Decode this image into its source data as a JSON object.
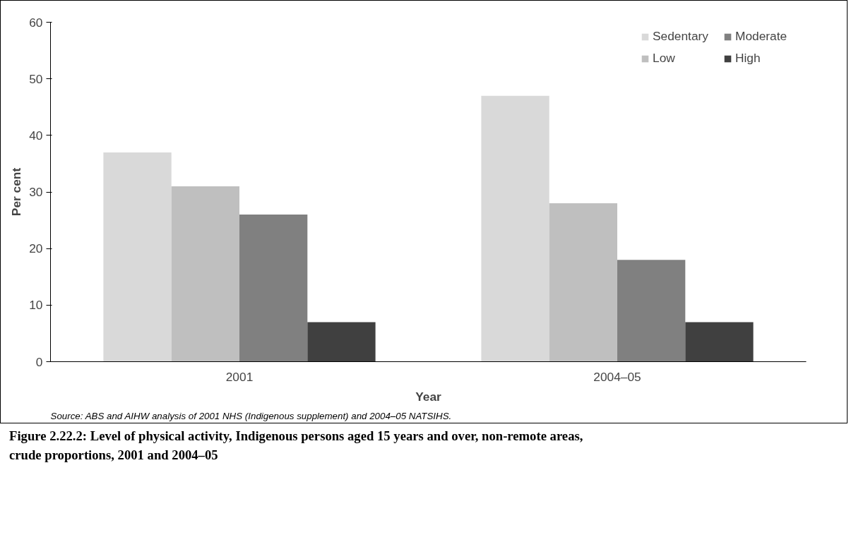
{
  "chart_data": {
    "type": "bar",
    "title": "Figure 2.22.2: Level of physical activity, Indigenous persons aged 15 years and over, non-remote areas, crude proportions, 2001 and 2004–05",
    "xlabel": "Year",
    "ylabel": "Per cent",
    "categories": [
      "2001",
      "2004–05"
    ],
    "series": [
      {
        "name": "Sedentary",
        "color": "#d9d9d9",
        "values": [
          37,
          47
        ]
      },
      {
        "name": "Low",
        "color": "#bfbfbf",
        "values": [
          31,
          28
        ]
      },
      {
        "name": "Moderate",
        "color": "#808080",
        "values": [
          26,
          18
        ]
      },
      {
        "name": "High",
        "color": "#404040",
        "values": [
          7,
          7
        ]
      }
    ],
    "ylim": [
      0,
      60
    ],
    "yticks": [
      0,
      10,
      20,
      30,
      40,
      50,
      60
    ],
    "grid": false,
    "legend": "top right",
    "annotations": [
      "Source: ABS and AIHW analysis of 2001 NHS (Indigenous supplement) and 2004–05 NATSIHS."
    ]
  }
}
